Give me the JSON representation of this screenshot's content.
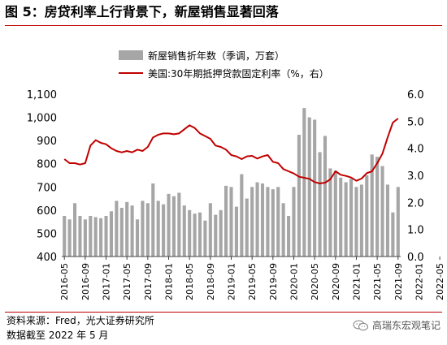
{
  "page": {
    "title": "图 5：房贷利率上行背景下，新屋销售显著回落",
    "source_line1": "资料来源：Fred，光大证券研究所",
    "source_line2": "数据截至 2022 年 5 月",
    "watermark": "高瑞东宏观笔记",
    "watermark_icon": "wechat-icon"
  },
  "colors": {
    "bar": "#a6a6a6",
    "line": "#c00000",
    "accent": "#c00000"
  },
  "chart_data": {
    "type": "bar",
    "title": "",
    "xlabel": "",
    "ylabel": "",
    "x_tick_labels": [
      "2016-05",
      "2016-09",
      "2017-01",
      "2017-05",
      "2017-09",
      "2018-01",
      "2018-05",
      "2018-09",
      "2019-01",
      "2019-05",
      "2019-09",
      "2020-01",
      "2020-05",
      "2020-09",
      "2021-01",
      "2021-05",
      "2021-09",
      "2022-01",
      "2022-05"
    ],
    "ylim_left": [
      400,
      1100
    ],
    "yticks_left": [
      "400",
      "500",
      "600",
      "700",
      "800",
      "900",
      "1,000",
      "1,100"
    ],
    "ylim_right": [
      0,
      6
    ],
    "yticks_right": [
      "0.0",
      "1.0",
      "2.0",
      "3.0",
      "4.0",
      "5.0",
      "6.0"
    ],
    "legend_position": "top-center",
    "grid": false,
    "series": [
      {
        "name": "新屋销售折年数（季调，万套）",
        "type": "bar",
        "axis": "left",
        "x_start": "2016-05",
        "values": [
          575,
          560,
          630,
          575,
          560,
          575,
          570,
          565,
          575,
          595,
          640,
          610,
          635,
          620,
          560,
          640,
          630,
          715,
          640,
          625,
          670,
          660,
          675,
          620,
          600,
          585,
          590,
          555,
          630,
          580,
          600,
          705,
          700,
          615,
          755,
          650,
          700,
          720,
          715,
          700,
          690,
          700,
          630,
          575,
          700,
          925,
          1040,
          1000,
          990,
          850,
          920,
          780,
          770,
          740,
          720,
          735,
          700,
          710,
          750,
          840,
          830,
          790,
          710,
          590,
          700
        ]
      },
      {
        "name": "美国:30年期抵押贷款固定利率（%，右）",
        "type": "line",
        "axis": "right",
        "x_start": "2016-05",
        "values": [
          3.6,
          3.45,
          3.45,
          3.4,
          3.45,
          4.1,
          4.3,
          4.2,
          4.15,
          4.0,
          3.9,
          3.85,
          3.9,
          3.85,
          3.95,
          3.9,
          4.05,
          4.4,
          4.5,
          4.55,
          4.55,
          4.52,
          4.55,
          4.7,
          4.85,
          4.75,
          4.55,
          4.45,
          4.35,
          4.1,
          4.05,
          3.95,
          3.75,
          3.7,
          3.6,
          3.7,
          3.72,
          3.62,
          3.7,
          3.75,
          3.5,
          3.45,
          3.23,
          3.15,
          3.07,
          2.95,
          2.91,
          2.87,
          2.75,
          2.7,
          2.73,
          2.85,
          3.15,
          3.02,
          2.98,
          2.92,
          2.8,
          2.88,
          3.08,
          3.15,
          3.45,
          3.8,
          4.4,
          4.95,
          5.1
        ]
      }
    ]
  }
}
